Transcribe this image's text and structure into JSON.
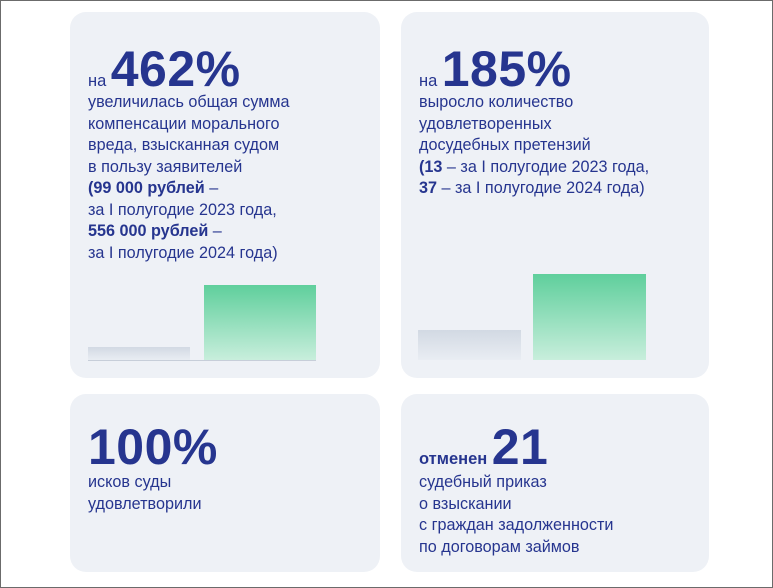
{
  "cards": [
    {
      "prefix": "на",
      "number": "462%",
      "lines": [
        "увеличилась общая сумма",
        "компенсации морального",
        "вреда, взысканная судом",
        "в пользу заявителей"
      ],
      "detail": [
        {
          "bold": "(99 000 рублей",
          "rest": " –"
        },
        {
          "bold": "",
          "rest": "за I полугодие 2023 года,"
        },
        {
          "bold": "556 000 рублей",
          "rest": " –"
        },
        {
          "bold": "",
          "rest": "за I полугодие 2024 года)"
        }
      ],
      "chart": {
        "values": [
          99000,
          556000
        ],
        "bar_colors": [
          "#d2d9e3",
          "#5fcf9c"
        ]
      }
    },
    {
      "prefix": "на",
      "number": "185%",
      "lines": [
        "выросло количество",
        "удовлетворенных",
        "досудебных претензий"
      ],
      "detail": [
        {
          "bold": "(13",
          "rest": " – за I полугодие 2023 года,"
        },
        {
          "bold": "37",
          "rest": " – за I полугодие 2024 года)"
        }
      ],
      "chart": {
        "values": [
          13,
          37
        ],
        "bar_colors": [
          "#d2d9e3",
          "#5fcf9c"
        ]
      }
    },
    {
      "number": "100%",
      "lines": [
        "исков суды",
        "удовлетворили"
      ]
    },
    {
      "prefix": "отменен",
      "number": "21",
      "lines": [
        "судебный приказ",
        "о взыскании",
        "с граждан задолженности",
        "по договорам займов"
      ]
    }
  ]
}
